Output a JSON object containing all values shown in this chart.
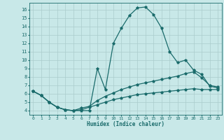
{
  "xlabel": "Humidex (Indice chaleur)",
  "background_color": "#c8e8e8",
  "grid_color": "#aacccc",
  "line_color": "#1a6b6b",
  "xlim": [
    -0.5,
    23.5
  ],
  "ylim": [
    3.5,
    16.8
  ],
  "yticks": [
    4,
    5,
    6,
    7,
    8,
    9,
    10,
    11,
    12,
    13,
    14,
    15,
    16
  ],
  "xticks": [
    0,
    1,
    2,
    3,
    4,
    5,
    6,
    7,
    8,
    9,
    10,
    11,
    12,
    13,
    14,
    15,
    16,
    17,
    18,
    19,
    20,
    21,
    22,
    23
  ],
  "series": [
    {
      "x": [
        0,
        1,
        2,
        3,
        4,
        5,
        6,
        7,
        8,
        9,
        10,
        11,
        12,
        13,
        14,
        15,
        16,
        17,
        18,
        19,
        20,
        21,
        22,
        23
      ],
      "y": [
        6.3,
        5.8,
        5.0,
        4.4,
        4.1,
        4.0,
        4.0,
        4.0,
        9.0,
        6.5,
        12.0,
        13.8,
        15.3,
        16.2,
        16.3,
        15.4,
        13.8,
        11.0,
        9.7,
        10.0,
        8.8,
        8.3,
        6.9,
        6.7
      ]
    },
    {
      "x": [
        0,
        1,
        2,
        3,
        4,
        5,
        6,
        7,
        8,
        9,
        10,
        11,
        12,
        13,
        14,
        15,
        16,
        17,
        18,
        19,
        20,
        21,
        22,
        23
      ],
      "y": [
        6.3,
        5.8,
        5.0,
        4.4,
        4.1,
        4.0,
        4.3,
        4.5,
        5.2,
        5.7,
        6.1,
        6.5,
        6.8,
        7.1,
        7.3,
        7.5,
        7.7,
        7.9,
        8.1,
        8.4,
        8.6,
        7.9,
        7.0,
        6.8
      ]
    },
    {
      "x": [
        0,
        1,
        2,
        3,
        4,
        5,
        6,
        7,
        8,
        9,
        10,
        11,
        12,
        13,
        14,
        15,
        16,
        17,
        18,
        19,
        20,
        21,
        22,
        23
      ],
      "y": [
        6.3,
        5.8,
        5.0,
        4.4,
        4.1,
        4.0,
        4.1,
        4.4,
        4.7,
        5.0,
        5.3,
        5.5,
        5.7,
        5.9,
        6.0,
        6.1,
        6.2,
        6.3,
        6.4,
        6.5,
        6.6,
        6.5,
        6.5,
        6.5
      ]
    }
  ]
}
